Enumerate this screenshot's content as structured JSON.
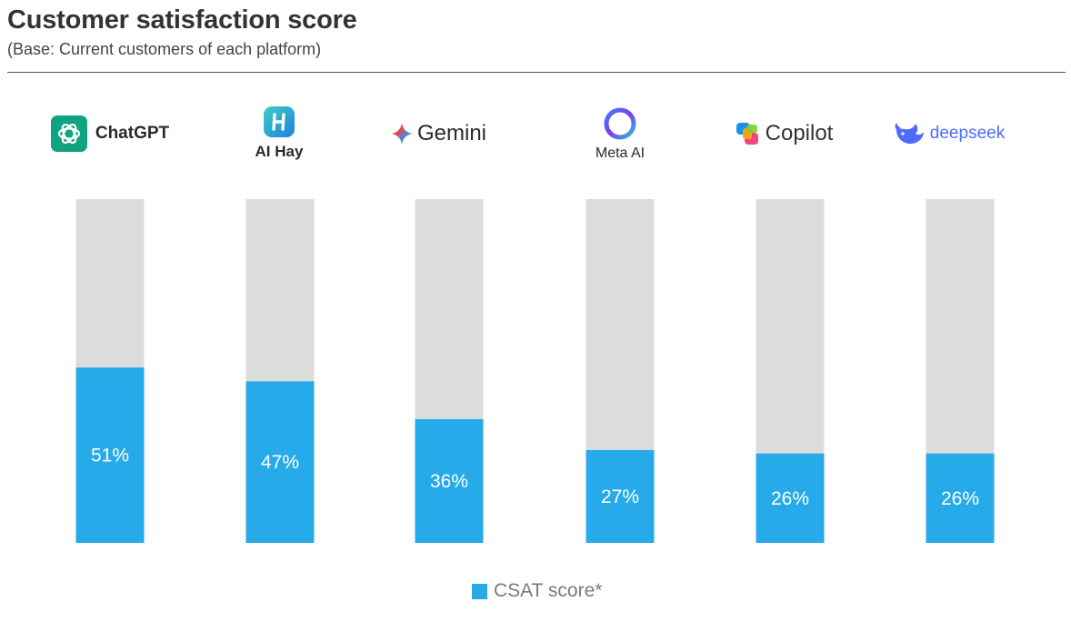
{
  "header": {
    "title": "Customer satisfaction score",
    "subtitle": "(Base: Current customers of each platform)"
  },
  "platforms": [
    {
      "name": "ChatGPT",
      "icon": "chatgpt-logo-icon"
    },
    {
      "name": "AI Hay",
      "icon": "ai-hay-logo-icon"
    },
    {
      "name": "Gemini",
      "icon": "gemini-sparkle-icon"
    },
    {
      "name": "Meta AI",
      "icon": "meta-ai-ring-icon"
    },
    {
      "name": "Copilot",
      "icon": "copilot-logo-icon"
    },
    {
      "name": "deepseek",
      "icon": "deepseek-whale-icon"
    }
  ],
  "chart_data": {
    "type": "bar",
    "categories": [
      "ChatGPT",
      "AI Hay",
      "Gemini",
      "Meta AI",
      "Copilot",
      "deepseek"
    ],
    "series": [
      {
        "name": "CSAT score*",
        "values": [
          51,
          47,
          36,
          27,
          26,
          26
        ],
        "labels": [
          "51%",
          "47%",
          "36%",
          "27%",
          "26%",
          "26%"
        ]
      }
    ],
    "ylim": [
      0,
      100
    ],
    "stacked_background": true,
    "legend_position": "bottom-center",
    "grid": false
  },
  "colors": {
    "bar": "#27aae9",
    "background_bar": "#dcdcdc",
    "chatgpt": "#10a37f",
    "ai_hay": "#1fa3e0",
    "deepseek": "#4d6bfe"
  },
  "legend": {
    "label": "CSAT score*"
  }
}
